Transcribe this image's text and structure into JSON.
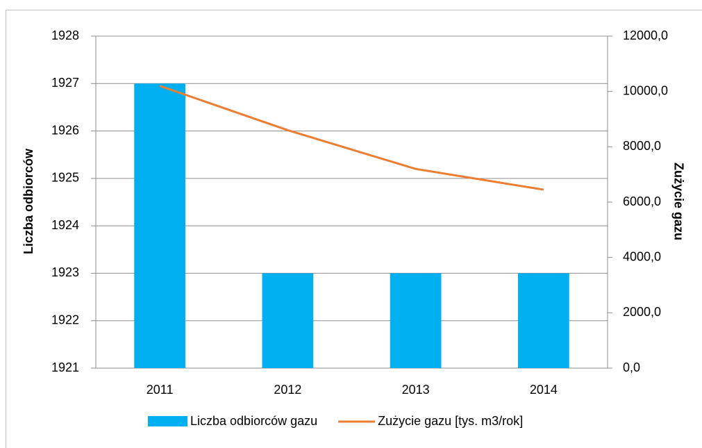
{
  "chart_data": {
    "type": "bar_line",
    "categories": [
      "2011",
      "2012",
      "2013",
      "2014"
    ],
    "series": [
      {
        "name": "Liczba odbiorców gazu",
        "type": "bar",
        "color": "#00b0f0",
        "values": [
          1927,
          1923,
          1923,
          1923
        ]
      },
      {
        "name": "Zużycie gazu [tys. m3/rok]",
        "type": "line",
        "axis": "y2",
        "color": "#ed7d31",
        "values": [
          10200,
          8600,
          7200,
          6450
        ]
      }
    ],
    "ylabel": "Liczba odbiorców",
    "y2label": "Zużycie gazu",
    "ylim": [
      1921,
      1928
    ],
    "yticks": [
      1921,
      1922,
      1923,
      1924,
      1925,
      1926,
      1927,
      1928
    ],
    "y2lim": [
      0,
      12000
    ],
    "y2ticks": [
      {
        "value": 0,
        "label": "0,0"
      },
      {
        "value": 2000,
        "label": "2000,0"
      },
      {
        "value": 4000,
        "label": "4000,0"
      },
      {
        "value": 6000,
        "label": "6000,0"
      },
      {
        "value": 8000,
        "label": "8000,0"
      },
      {
        "value": 10000,
        "label": "10000,0"
      },
      {
        "value": 12000,
        "label": "12000,0"
      }
    ],
    "grid": true,
    "legend": "bottom"
  }
}
